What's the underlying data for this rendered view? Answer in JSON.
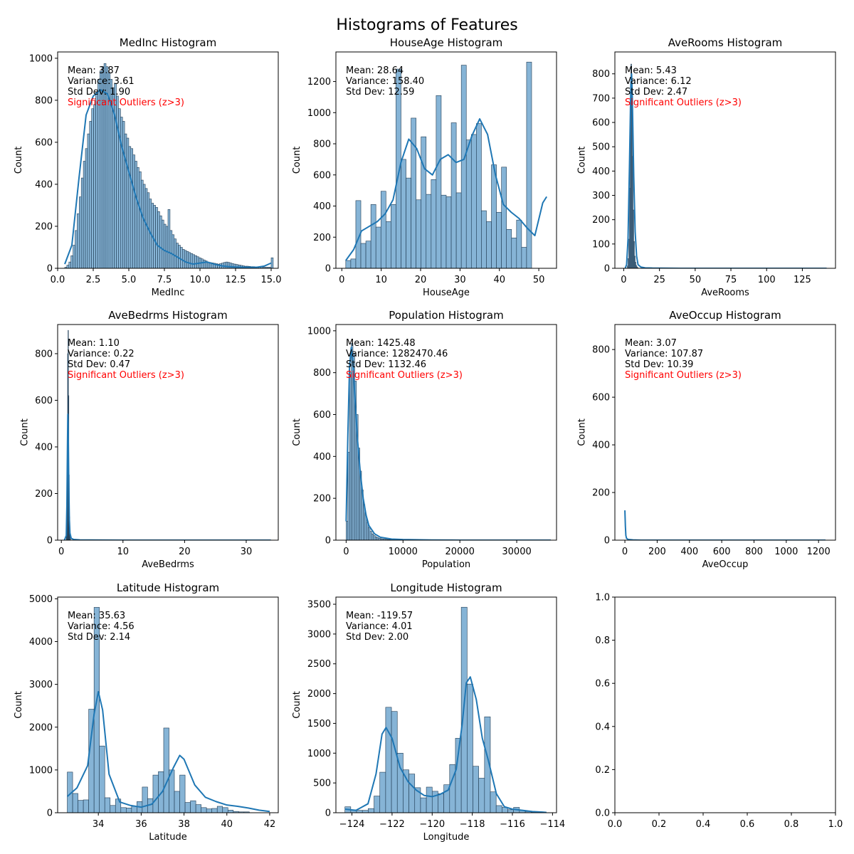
{
  "title": "Histograms of Features",
  "colors": {
    "bar_fill": "#86b4d6",
    "bar_edge": "#1f3a52",
    "kde": "#1f77b4",
    "outlier_text": "#ff0000"
  },
  "chart_data": [
    {
      "type": "bar",
      "title": "MedInc Histogram",
      "xlabel": "MedInc",
      "ylabel": "Count",
      "xlim": [
        0,
        15.5
      ],
      "ylim": [
        0,
        1030
      ],
      "xticks": [
        0,
        2.5,
        5,
        7.5,
        10,
        12.5,
        15
      ],
      "xtick_labels": [
        "0.0",
        "2.5",
        "5.0",
        "7.5",
        "10.0",
        "12.5",
        "15.0"
      ],
      "yticks": [
        0,
        200,
        400,
        600,
        800,
        1000
      ],
      "ytick_labels": [
        "0",
        "200",
        "400",
        "600",
        "800",
        "1000"
      ],
      "stats": {
        "mean": "Mean: 3.87",
        "variance": "Variance: 3.61",
        "std": "Std Dev: 1.90",
        "outliers": "Significant Outliers (z>3)"
      },
      "bins": {
        "start": 0.5,
        "width": 0.145,
        "counts": [
          5,
          15,
          30,
          60,
          110,
          180,
          260,
          340,
          430,
          510,
          570,
          640,
          700,
          760,
          780,
          840,
          900,
          940,
          960,
          975,
          960,
          930,
          900,
          860,
          880,
          820,
          760,
          720,
          700,
          640,
          620,
          580,
          570,
          540,
          510,
          480,
          460,
          420,
          400,
          380,
          360,
          330,
          310,
          300,
          290,
          270,
          250,
          230,
          210,
          200,
          280,
          180,
          160,
          140,
          120,
          110,
          100,
          90,
          85,
          80,
          75,
          70,
          65,
          60,
          55,
          50,
          45,
          40,
          35,
          30,
          28,
          26,
          24,
          22,
          20,
          22,
          25,
          28,
          30,
          28,
          25,
          22,
          20,
          18,
          16,
          14,
          12,
          10,
          10,
          9,
          8,
          8,
          7,
          7,
          6,
          6,
          5,
          5,
          5,
          5,
          50
        ]
      },
      "kde": {
        "x": [
          0.5,
          1.0,
          1.5,
          2.0,
          2.5,
          3.0,
          3.5,
          4.0,
          4.5,
          5.0,
          5.5,
          6.0,
          6.5,
          7.0,
          7.5,
          8.0,
          8.5,
          9.0,
          9.5,
          10.0,
          10.5,
          11.0,
          11.5,
          12.0,
          12.5,
          13.0,
          13.5,
          14.0,
          14.5,
          15.0
        ],
        "y": [
          20,
          110,
          430,
          730,
          820,
          850,
          830,
          730,
          580,
          460,
          340,
          240,
          170,
          110,
          85,
          70,
          50,
          30,
          20,
          25,
          30,
          20,
          12,
          8,
          6,
          5,
          5,
          5,
          10,
          25
        ]
      }
    },
    {
      "type": "bar",
      "title": "HouseAge Histogram",
      "xlabel": "HouseAge",
      "ylabel": "Count",
      "xlim": [
        -1.5,
        54.5
      ],
      "ylim": [
        0,
        1390
      ],
      "xticks": [
        0,
        10,
        20,
        30,
        40,
        50
      ],
      "xtick_labels": [
        "0",
        "10",
        "20",
        "30",
        "40",
        "50"
      ],
      "yticks": [
        0,
        200,
        400,
        600,
        800,
        1000,
        1200
      ],
      "ytick_labels": [
        "0",
        "200",
        "400",
        "600",
        "800",
        "1000",
        "1200"
      ],
      "stats": {
        "mean": "Mean: 28.64",
        "variance": "Variance: 158.40",
        "std": "Std Dev: 12.59"
      },
      "bins": {
        "start": 1,
        "width": 1.275,
        "counts": [
          50,
          60,
          435,
          160,
          175,
          410,
          265,
          495,
          300,
          410,
          1280,
          700,
          580,
          965,
          440,
          845,
          475,
          570,
          1110,
          470,
          460,
          935,
          485,
          1305,
          825,
          860,
          930,
          370,
          300,
          665,
          360,
          650,
          250,
          195,
          310,
          135,
          1325
        ]
      },
      "kde": {
        "x": [
          1,
          3,
          5,
          7,
          9,
          11,
          13,
          15,
          17,
          19,
          21,
          23,
          25,
          27,
          29,
          31,
          33,
          35,
          37,
          39,
          41,
          43,
          45,
          47,
          49,
          51,
          52
        ],
        "y": [
          50,
          120,
          240,
          270,
          300,
          350,
          440,
          680,
          830,
          770,
          640,
          600,
          700,
          730,
          680,
          700,
          850,
          960,
          860,
          600,
          410,
          360,
          320,
          260,
          210,
          420,
          460
        ]
      }
    },
    {
      "type": "bar",
      "title": "AveRooms Histogram",
      "xlabel": "AveRooms",
      "ylabel": "Count",
      "xlim": [
        -6.2,
        148.2
      ],
      "ylim": [
        0,
        890
      ],
      "xticks": [
        0,
        25,
        50,
        75,
        100,
        125
      ],
      "xtick_labels": [
        "0",
        "25",
        "50",
        "75",
        "100",
        "125"
      ],
      "yticks": [
        0,
        100,
        200,
        300,
        400,
        500,
        600,
        700,
        800
      ],
      "ytick_labels": [
        "0",
        "100",
        "200",
        "300",
        "400",
        "500",
        "600",
        "700",
        "800"
      ],
      "stats": {
        "mean": "Mean: 5.43",
        "variance": "Variance: 6.12",
        "std": "Std Dev: 2.47",
        "outliers": "Significant Outliers (z>3)"
      },
      "bins": {
        "start": 2.5,
        "width": 0.5,
        "counts": [
          10,
          40,
          120,
          330,
          610,
          840,
          700,
          460,
          240,
          110,
          50,
          25,
          12,
          6,
          3
        ]
      },
      "kde": {
        "x": [
          1,
          2,
          3,
          4,
          5,
          5.5,
          6,
          7,
          8,
          9,
          10,
          12,
          15,
          20,
          40,
          80,
          142
        ],
        "y": [
          0,
          15,
          120,
          420,
          760,
          800,
          700,
          380,
          150,
          50,
          15,
          5,
          2,
          1,
          0,
          0,
          0
        ]
      }
    },
    {
      "type": "bar",
      "title": "AveBedrms Histogram",
      "xlabel": "AveBedrms",
      "ylabel": "Count",
      "xlim": [
        -0.6,
        35.2
      ],
      "ylim": [
        0,
        925
      ],
      "xticks": [
        0,
        10,
        20,
        30
      ],
      "xtick_labels": [
        "0",
        "10",
        "20",
        "30"
      ],
      "yticks": [
        0,
        200,
        400,
        600,
        800
      ],
      "ytick_labels": [
        "0",
        "200",
        "400",
        "600",
        "800"
      ],
      "stats": {
        "mean": "Mean: 1.10",
        "variance": "Variance: 0.22",
        "std": "Std Dev: 0.47",
        "outliers": "Significant Outliers (z>3)"
      },
      "bins": {
        "start": 0.8,
        "width": 0.07,
        "counts": [
          20,
          140,
          420,
          800,
          900,
          620,
          280,
          100,
          30,
          10
        ]
      },
      "kde": {
        "x": [
          0.5,
          0.8,
          0.9,
          1.0,
          1.05,
          1.1,
          1.2,
          1.3,
          1.4,
          1.6,
          2.0,
          3.0,
          10,
          34
        ],
        "y": [
          0,
          20,
          150,
          420,
          540,
          500,
          260,
          90,
          30,
          8,
          3,
          1,
          0,
          0
        ]
      }
    },
    {
      "type": "bar",
      "title": "Population Histogram",
      "xlabel": "Population",
      "ylabel": "Count",
      "xlim": [
        -1800,
        37000
      ],
      "ylim": [
        0,
        1030
      ],
      "xticks": [
        0,
        10000,
        20000,
        30000
      ],
      "xtick_labels": [
        "0",
        "10000",
        "20000",
        "30000"
      ],
      "yticks": [
        0,
        200,
        400,
        600,
        800,
        1000
      ],
      "ytick_labels": [
        "0",
        "200",
        "400",
        "600",
        "800",
        "1000"
      ],
      "stats": {
        "mean": "Mean: 1425.48",
        "variance": "Variance: 1282470.46",
        "std": "Std Dev: 1132.46",
        "outliers": "Significant Outliers (z>3)"
      },
      "bins": {
        "start": 0,
        "width": 300,
        "counts": [
          90,
          420,
          800,
          940,
          890,
          760,
          600,
          440,
          330,
          240,
          170,
          120,
          85,
          60,
          42,
          30,
          22,
          16,
          12,
          9,
          7,
          6,
          5,
          4,
          3,
          3,
          2,
          2,
          2,
          1
        ]
      },
      "kde": {
        "x": [
          0,
          300,
          600,
          900,
          1200,
          1500,
          2000,
          2500,
          3000,
          3500,
          4000,
          5000,
          6000,
          8000,
          10000,
          15000,
          20000,
          36000
        ],
        "y": [
          90,
          500,
          830,
          920,
          850,
          700,
          480,
          320,
          200,
          120,
          70,
          30,
          14,
          5,
          3,
          1,
          0,
          0
        ]
      }
    },
    {
      "type": "bar",
      "title": "AveOccup Histogram",
      "xlabel": "AveOccup",
      "ylabel": "Count",
      "xlim": [
        -62,
        1305
      ],
      "ylim": [
        0,
        905
      ],
      "xticks": [
        0,
        200,
        400,
        600,
        800,
        1000,
        1200
      ],
      "xtick_labels": [
        "0",
        "200",
        "400",
        "600",
        "800",
        "1000",
        "1200"
      ],
      "yticks": [
        0,
        200,
        400,
        600,
        800
      ],
      "ytick_labels": [
        "0",
        "200",
        "400",
        "600",
        "800"
      ],
      "stats": {
        "mean": "Mean: 3.07",
        "variance": "Variance: 107.87",
        "std": "Std Dev: 10.39",
        "outliers": "Significant Outliers (z>3)"
      },
      "bins": {
        "start": 0,
        "width": 2,
        "counts": []
      },
      "kde": {
        "x": [
          0,
          3,
          6,
          10,
          20,
          50,
          100,
          300,
          1243
        ],
        "y": [
          125,
          60,
          20,
          8,
          3,
          1,
          0,
          0,
          0
        ]
      }
    },
    {
      "type": "bar",
      "title": "Latitude Histogram",
      "xlabel": "Latitude",
      "ylabel": "Count",
      "xlim": [
        32.1,
        42.4
      ],
      "ylim": [
        0,
        5040
      ],
      "xticks": [
        34,
        36,
        38,
        40,
        42
      ],
      "xtick_labels": [
        "34",
        "36",
        "38",
        "40",
        "42"
      ],
      "yticks": [
        0,
        1000,
        2000,
        3000,
        4000,
        5000
      ],
      "ytick_labels": [
        "0",
        "1000",
        "2000",
        "3000",
        "4000",
        "5000"
      ],
      "stats": {
        "mean": "Mean: 35.63",
        "variance": "Variance: 4.56",
        "std": "Std Dev: 2.14"
      },
      "bins": {
        "start": 32.55,
        "width": 0.25,
        "counts": [
          950,
          450,
          290,
          300,
          2420,
          4800,
          1560,
          350,
          170,
          320,
          120,
          110,
          150,
          260,
          600,
          330,
          880,
          960,
          1980,
          1000,
          500,
          880,
          240,
          280,
          190,
          120,
          90,
          100,
          150,
          120,
          60,
          30,
          20,
          20
        ]
      },
      "kde": {
        "x": [
          32.55,
          33.0,
          33.5,
          33.8,
          34.0,
          34.2,
          34.5,
          35.0,
          35.5,
          36.0,
          36.5,
          37.0,
          37.5,
          37.8,
          38.0,
          38.5,
          39.0,
          39.5,
          40.0,
          40.5,
          41.0,
          41.5,
          42.0
        ],
        "y": [
          380,
          580,
          1100,
          2300,
          2830,
          2400,
          900,
          250,
          170,
          130,
          200,
          500,
          1050,
          1340,
          1250,
          650,
          360,
          260,
          180,
          150,
          110,
          60,
          30
        ]
      }
    },
    {
      "type": "bar",
      "title": "Longitude Histogram",
      "xlabel": "Longitude",
      "ylabel": "Count",
      "xlim": [
        -124.8,
        -113.8
      ],
      "ylim": [
        0,
        3620
      ],
      "xticks": [
        -124,
        -122,
        -120,
        -118,
        -116,
        -114
      ],
      "xtick_labels": [
        "−124",
        "−122",
        "−120",
        "−118",
        "−116",
        "−114"
      ],
      "yticks": [
        0,
        500,
        1000,
        1500,
        2000,
        2500,
        3000,
        3500
      ],
      "ytick_labels": [
        "0",
        "500",
        "1000",
        "1500",
        "2000",
        "2500",
        "3000",
        "3500"
      ],
      "stats": {
        "mean": "Mean: -119.57",
        "variance": "Variance: 4.01",
        "std": "Std Dev: 2.00"
      },
      "bins": {
        "start": -124.35,
        "width": 0.29,
        "counts": [
          100,
          50,
          40,
          40,
          70,
          280,
          680,
          1770,
          1700,
          1000,
          720,
          650,
          420,
          250,
          430,
          360,
          320,
          470,
          810,
          1250,
          3450,
          2160,
          780,
          580,
          1610,
          350,
          120,
          90,
          50,
          90,
          40,
          20,
          10,
          10
        ]
      },
      "kde": {
        "x": [
          -124.35,
          -123.8,
          -123.2,
          -122.8,
          -122.5,
          -122.3,
          -122.0,
          -121.6,
          -121.2,
          -120.8,
          -120.4,
          -120.0,
          -119.6,
          -119.2,
          -118.8,
          -118.5,
          -118.3,
          -118.1,
          -117.8,
          -117.5,
          -117.2,
          -116.8,
          -116.4,
          -116.0,
          -115.5,
          -115.0,
          -114.5,
          -114.3
        ],
        "y": [
          60,
          40,
          150,
          650,
          1320,
          1430,
          1250,
          760,
          520,
          380,
          290,
          270,
          310,
          380,
          730,
          1500,
          2180,
          2280,
          1900,
          1250,
          880,
          320,
          100,
          60,
          40,
          20,
          10,
          5
        ]
      }
    },
    {
      "type": "bar",
      "title": "",
      "xlabel": "",
      "ylabel": "",
      "xlim": [
        0,
        1
      ],
      "ylim": [
        0,
        1
      ],
      "xticks": [
        0,
        0.2,
        0.4,
        0.6,
        0.8,
        1.0
      ],
      "xtick_labels": [
        "0.0",
        "0.2",
        "0.4",
        "0.6",
        "0.8",
        "1.0"
      ],
      "yticks": [
        0,
        0.2,
        0.4,
        0.6,
        0.8,
        1.0
      ],
      "ytick_labels": [
        "0.0",
        "0.2",
        "0.4",
        "0.6",
        "0.8",
        "1.0"
      ],
      "bins": {
        "start": 0,
        "width": 0,
        "counts": []
      },
      "kde": {
        "x": [],
        "y": []
      }
    }
  ]
}
